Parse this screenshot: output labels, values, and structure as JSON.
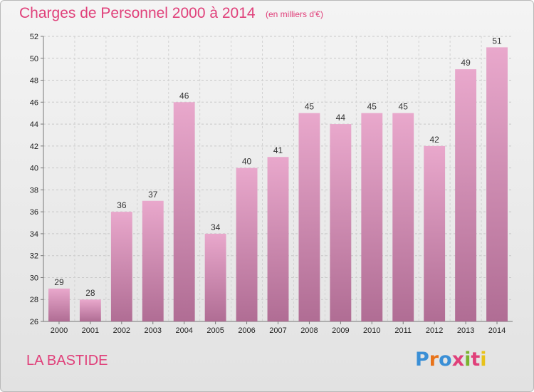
{
  "header": {
    "title": "Charges de Personnel 2000 à 2014",
    "subtitle": "(en milliers d'€)"
  },
  "footer": {
    "place": "LA BASTIDE",
    "logo": "Proxiti"
  },
  "colors": {
    "title": "#e0407a",
    "bar_top": "#e9a8cc",
    "bar_bottom": "#b06d94",
    "logo_letters": [
      "#3a8fd6",
      "#e8731a",
      "#3a8fd6",
      "#e0407a",
      "#7bb32e",
      "#e0407a",
      "#e8c21a"
    ]
  },
  "chart_data": {
    "type": "bar",
    "title": "Charges de Personnel 2000 à 2014",
    "subtitle": "(en milliers d'€)",
    "categories": [
      "2000",
      "2001",
      "2002",
      "2003",
      "2004",
      "2005",
      "2006",
      "2007",
      "2008",
      "2009",
      "2010",
      "2011",
      "2012",
      "2013",
      "2014"
    ],
    "values": [
      29,
      28,
      36,
      37,
      46,
      34,
      40,
      41,
      45,
      44,
      45,
      45,
      42,
      49,
      51
    ],
    "ylim": [
      26,
      52
    ],
    "yticks": [
      26,
      28,
      30,
      32,
      34,
      36,
      38,
      40,
      42,
      44,
      46,
      48,
      50,
      52
    ],
    "grid": true,
    "legend": "none",
    "xlabel": "",
    "ylabel": ""
  }
}
